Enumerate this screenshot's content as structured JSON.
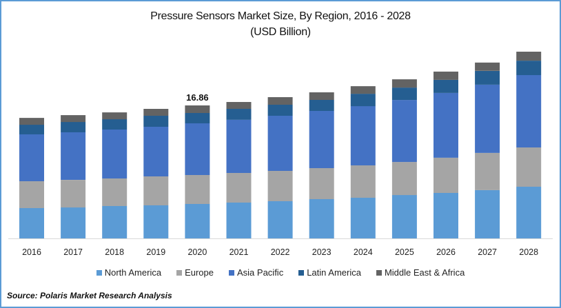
{
  "chart_data": {
    "type": "bar",
    "stacked": true,
    "title": "Pressure Sensors Market Size, By Region, 2016 - 2028",
    "subtitle": "(USD Billion)",
    "xlabel": "",
    "ylabel": "",
    "categories": [
      "2016",
      "2017",
      "2018",
      "2019",
      "2020",
      "2021",
      "2022",
      "2023",
      "2024",
      "2025",
      "2026",
      "2027",
      "2028"
    ],
    "series": [
      {
        "name": "North America",
        "color": "#5b9bd5",
        "values": [
          3.84,
          3.93,
          4.11,
          4.19,
          4.37,
          4.54,
          4.72,
          4.98,
          5.15,
          5.5,
          5.77,
          6.12,
          6.55
        ]
      },
      {
        "name": "Europe",
        "color": "#a5a5a5",
        "values": [
          3.41,
          3.49,
          3.49,
          3.67,
          3.67,
          3.76,
          3.84,
          3.93,
          4.11,
          4.19,
          4.46,
          4.72,
          4.98
        ]
      },
      {
        "name": "Asia Pacific",
        "color": "#4472c4",
        "values": [
          5.94,
          6.03,
          6.2,
          6.29,
          6.55,
          6.73,
          6.99,
          7.25,
          7.51,
          7.86,
          8.21,
          8.65,
          9.17
        ]
      },
      {
        "name": "Latin America",
        "color": "#255e91",
        "values": [
          1.22,
          1.31,
          1.31,
          1.4,
          1.31,
          1.4,
          1.4,
          1.4,
          1.57,
          1.57,
          1.66,
          1.75,
          1.83
        ]
      },
      {
        "name": "Middle East & Africa",
        "color": "#636363",
        "values": [
          0.87,
          0.87,
          0.87,
          0.87,
          0.96,
          0.87,
          0.96,
          0.96,
          0.96,
          1.05,
          1.05,
          1.05,
          1.14
        ]
      }
    ],
    "annotations": [
      {
        "category": "2020",
        "text": "16.86"
      }
    ],
    "ylim": [
      0,
      26
    ],
    "grid": false,
    "legend_position": "bottom"
  },
  "source": "Source: Polaris  Market Research Analysis"
}
